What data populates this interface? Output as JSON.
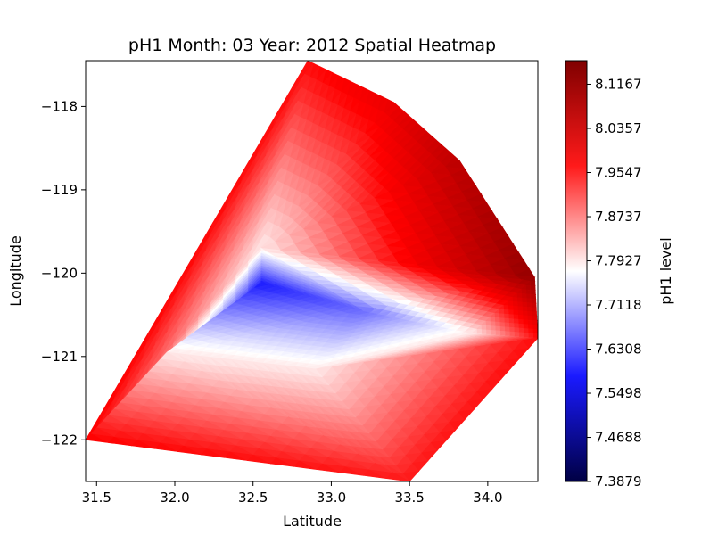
{
  "chart_data": {
    "type": "heatmap",
    "title": "pH1 Month: 03 Year: 2012 Spatial Heatmap",
    "xlabel": "Latitude",
    "ylabel": "Longitude",
    "xlim": [
      31.43,
      34.32
    ],
    "ylim": [
      -122.5,
      -117.45
    ],
    "x_ticks": [
      31.5,
      32.0,
      32.5,
      33.0,
      33.5,
      34.0
    ],
    "x_tick_labels": [
      "31.5",
      "32.0",
      "32.5",
      "33.0",
      "33.5",
      "34.0"
    ],
    "y_ticks": [
      -118,
      -119,
      -120,
      -121,
      -122
    ],
    "y_tick_labels": [
      "−118",
      "−119",
      "−120",
      "−121",
      "−122"
    ],
    "grid": false,
    "colormap": "seismic",
    "colorbar": {
      "label": "pH1 level",
      "min": 7.3879,
      "max": 8.16,
      "ticks": [
        7.3879,
        7.4688,
        7.5498,
        7.6308,
        7.7118,
        7.7927,
        7.8737,
        7.9547,
        8.0357,
        8.1167
      ],
      "tick_labels": [
        "7.3879",
        "7.4688",
        "7.5498",
        "7.6308",
        "7.7118",
        "7.7927",
        "7.8737",
        "7.9547",
        "8.0357",
        "8.1167"
      ]
    },
    "points": [
      {
        "lat": 31.43,
        "lon": -122.0,
        "value": 7.97
      },
      {
        "lat": 32.85,
        "lon": -117.45,
        "value": 7.96
      },
      {
        "lat": 33.4,
        "lon": -117.95,
        "value": 8.0
      },
      {
        "lat": 33.82,
        "lon": -118.65,
        "value": 8.07
      },
      {
        "lat": 34.3,
        "lon": -120.05,
        "value": 8.13
      },
      {
        "lat": 34.32,
        "lon": -120.78,
        "value": 7.96
      },
      {
        "lat": 33.5,
        "lon": -122.5,
        "value": 7.95
      },
      {
        "lat": 32.55,
        "lon": -119.7,
        "value": 7.79
      },
      {
        "lat": 32.55,
        "lon": -120.12,
        "value": 7.6
      },
      {
        "lat": 33.2,
        "lon": -120.45,
        "value": 7.66
      },
      {
        "lat": 33.9,
        "lon": -120.72,
        "value": 7.79
      },
      {
        "lat": 31.95,
        "lon": -120.95,
        "value": 7.79
      },
      {
        "lat": 32.9,
        "lon": -121.15,
        "value": 7.79
      }
    ]
  }
}
